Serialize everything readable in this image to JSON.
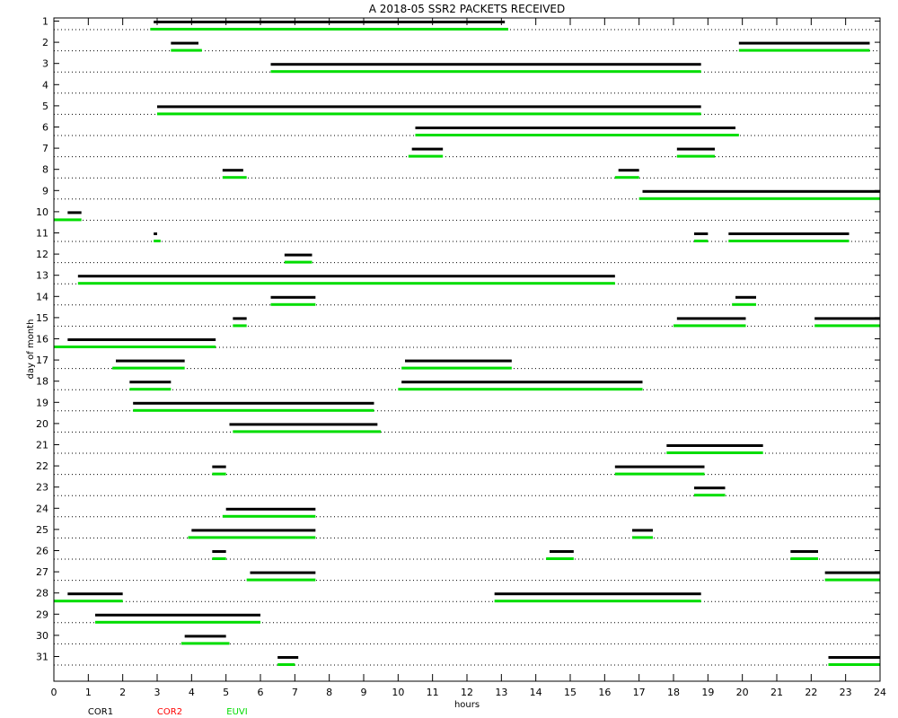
{
  "chart_data": {
    "type": "timeline",
    "title": "A  2018-05 SSR2 PACKETS RECEIVED",
    "xlabel": "hours",
    "ylabel": "day of month",
    "xlim": [
      0,
      24
    ],
    "ylim": [
      1,
      31
    ],
    "x_ticks": [
      "0",
      "1",
      "2",
      "3",
      "4",
      "5",
      "6",
      "7",
      "8",
      "9",
      "10",
      "11",
      "12",
      "13",
      "14",
      "15",
      "16",
      "17",
      "18",
      "19",
      "20",
      "21",
      "22",
      "23",
      "24"
    ],
    "y_ticks": [
      "1",
      "2",
      "3",
      "4",
      "5",
      "6",
      "7",
      "8",
      "9",
      "10",
      "11",
      "12",
      "13",
      "14",
      "15",
      "16",
      "17",
      "18",
      "19",
      "20",
      "21",
      "22",
      "23",
      "24",
      "25",
      "26",
      "27",
      "28",
      "29",
      "30",
      "31"
    ],
    "grid": "dotted horizontal",
    "legend": [
      {
        "name": "COR1",
        "color": "#000000"
      },
      {
        "name": "COR2",
        "color": "#ff0000"
      },
      {
        "name": "EUVI",
        "color": "#00dd00"
      }
    ],
    "series": [
      {
        "name": "COR1",
        "color": "#000000",
        "segments": [
          {
            "day": 1,
            "start": 2.9,
            "end": 13.1
          },
          {
            "day": 2,
            "start": 3.4,
            "end": 4.2
          },
          {
            "day": 2,
            "start": 19.9,
            "end": 23.7
          },
          {
            "day": 3,
            "start": 6.3,
            "end": 18.8
          },
          {
            "day": 5,
            "start": 3.0,
            "end": 18.8
          },
          {
            "day": 6,
            "start": 10.5,
            "end": 19.8
          },
          {
            "day": 7,
            "start": 10.4,
            "end": 11.3
          },
          {
            "day": 7,
            "start": 18.1,
            "end": 19.2
          },
          {
            "day": 8,
            "start": 4.9,
            "end": 5.5
          },
          {
            "day": 8,
            "start": 16.4,
            "end": 17.0
          },
          {
            "day": 9,
            "start": 17.1,
            "end": 24.0
          },
          {
            "day": 10,
            "start": 0.4,
            "end": 0.8
          },
          {
            "day": 11,
            "start": 2.9,
            "end": 3.0
          },
          {
            "day": 11,
            "start": 18.6,
            "end": 19.0
          },
          {
            "day": 11,
            "start": 19.6,
            "end": 23.1
          },
          {
            "day": 12,
            "start": 6.7,
            "end": 7.5
          },
          {
            "day": 13,
            "start": 0.7,
            "end": 16.3
          },
          {
            "day": 14,
            "start": 6.3,
            "end": 7.6
          },
          {
            "day": 14,
            "start": 19.8,
            "end": 20.4
          },
          {
            "day": 15,
            "start": 5.2,
            "end": 5.6
          },
          {
            "day": 15,
            "start": 18.1,
            "end": 20.1
          },
          {
            "day": 15,
            "start": 22.1,
            "end": 24.0
          },
          {
            "day": 16,
            "start": 0.4,
            "end": 4.7
          },
          {
            "day": 17,
            "start": 1.8,
            "end": 3.8
          },
          {
            "day": 17,
            "start": 10.2,
            "end": 13.3
          },
          {
            "day": 18,
            "start": 2.2,
            "end": 3.4
          },
          {
            "day": 18,
            "start": 10.1,
            "end": 17.1
          },
          {
            "day": 19,
            "start": 2.3,
            "end": 9.3
          },
          {
            "day": 20,
            "start": 5.1,
            "end": 9.4
          },
          {
            "day": 21,
            "start": 17.8,
            "end": 20.6
          },
          {
            "day": 22,
            "start": 4.6,
            "end": 5.0
          },
          {
            "day": 22,
            "start": 16.3,
            "end": 18.9
          },
          {
            "day": 23,
            "start": 18.6,
            "end": 19.5
          },
          {
            "day": 24,
            "start": 5.0,
            "end": 7.6
          },
          {
            "day": 25,
            "start": 4.0,
            "end": 7.6
          },
          {
            "day": 25,
            "start": 16.8,
            "end": 17.4
          },
          {
            "day": 26,
            "start": 4.6,
            "end": 5.0
          },
          {
            "day": 26,
            "start": 14.4,
            "end": 15.1
          },
          {
            "day": 26,
            "start": 21.4,
            "end": 22.2
          },
          {
            "day": 27,
            "start": 5.7,
            "end": 7.6
          },
          {
            "day": 27,
            "start": 22.4,
            "end": 24.0
          },
          {
            "day": 28,
            "start": 0.4,
            "end": 2.0
          },
          {
            "day": 28,
            "start": 12.8,
            "end": 18.8
          },
          {
            "day": 29,
            "start": 1.2,
            "end": 6.0
          },
          {
            "day": 30,
            "start": 3.8,
            "end": 5.0
          },
          {
            "day": 31,
            "start": 6.5,
            "end": 7.1
          },
          {
            "day": 31,
            "start": 22.5,
            "end": 24.0
          }
        ]
      },
      {
        "name": "EUVI",
        "color": "#00dd00",
        "segments": [
          {
            "day": 1,
            "start": 2.8,
            "end": 13.2
          },
          {
            "day": 2,
            "start": 3.4,
            "end": 4.3
          },
          {
            "day": 2,
            "start": 19.9,
            "end": 23.7
          },
          {
            "day": 3,
            "start": 6.3,
            "end": 18.8
          },
          {
            "day": 5,
            "start": 3.0,
            "end": 18.8
          },
          {
            "day": 6,
            "start": 10.5,
            "end": 19.9
          },
          {
            "day": 7,
            "start": 10.3,
            "end": 11.3
          },
          {
            "day": 7,
            "start": 18.1,
            "end": 19.2
          },
          {
            "day": 8,
            "start": 4.9,
            "end": 5.6
          },
          {
            "day": 8,
            "start": 16.3,
            "end": 17.0
          },
          {
            "day": 9,
            "start": 17.0,
            "end": 24.0
          },
          {
            "day": 10,
            "start": 0.0,
            "end": 0.8
          },
          {
            "day": 11,
            "start": 2.9,
            "end": 3.1
          },
          {
            "day": 11,
            "start": 18.6,
            "end": 19.0
          },
          {
            "day": 11,
            "start": 19.6,
            "end": 23.1
          },
          {
            "day": 12,
            "start": 6.7,
            "end": 7.5
          },
          {
            "day": 13,
            "start": 0.7,
            "end": 16.3
          },
          {
            "day": 14,
            "start": 6.3,
            "end": 7.6
          },
          {
            "day": 14,
            "start": 19.7,
            "end": 20.4
          },
          {
            "day": 15,
            "start": 5.2,
            "end": 5.6
          },
          {
            "day": 15,
            "start": 18.0,
            "end": 20.1
          },
          {
            "day": 15,
            "start": 22.1,
            "end": 24.0
          },
          {
            "day": 16,
            "start": 0.0,
            "end": 4.7
          },
          {
            "day": 17,
            "start": 1.7,
            "end": 3.8
          },
          {
            "day": 17,
            "start": 10.1,
            "end": 13.3
          },
          {
            "day": 18,
            "start": 2.2,
            "end": 3.4
          },
          {
            "day": 18,
            "start": 10.0,
            "end": 17.1
          },
          {
            "day": 19,
            "start": 2.3,
            "end": 9.3
          },
          {
            "day": 20,
            "start": 5.2,
            "end": 9.5
          },
          {
            "day": 21,
            "start": 17.8,
            "end": 20.6
          },
          {
            "day": 22,
            "start": 4.6,
            "end": 5.0
          },
          {
            "day": 22,
            "start": 16.3,
            "end": 18.9
          },
          {
            "day": 23,
            "start": 18.6,
            "end": 19.5
          },
          {
            "day": 24,
            "start": 4.9,
            "end": 7.6
          },
          {
            "day": 25,
            "start": 3.9,
            "end": 7.6
          },
          {
            "day": 25,
            "start": 16.8,
            "end": 17.4
          },
          {
            "day": 26,
            "start": 4.6,
            "end": 5.0
          },
          {
            "day": 26,
            "start": 14.3,
            "end": 15.1
          },
          {
            "day": 26,
            "start": 21.4,
            "end": 22.2
          },
          {
            "day": 27,
            "start": 5.6,
            "end": 7.6
          },
          {
            "day": 27,
            "start": 22.4,
            "end": 24.0
          },
          {
            "day": 28,
            "start": 0.0,
            "end": 2.0
          },
          {
            "day": 28,
            "start": 12.8,
            "end": 18.8
          },
          {
            "day": 29,
            "start": 1.2,
            "end": 6.0
          },
          {
            "day": 30,
            "start": 3.7,
            "end": 5.1
          },
          {
            "day": 31,
            "start": 6.5,
            "end": 7.0
          },
          {
            "day": 31,
            "start": 22.5,
            "end": 24.0
          }
        ]
      }
    ]
  }
}
